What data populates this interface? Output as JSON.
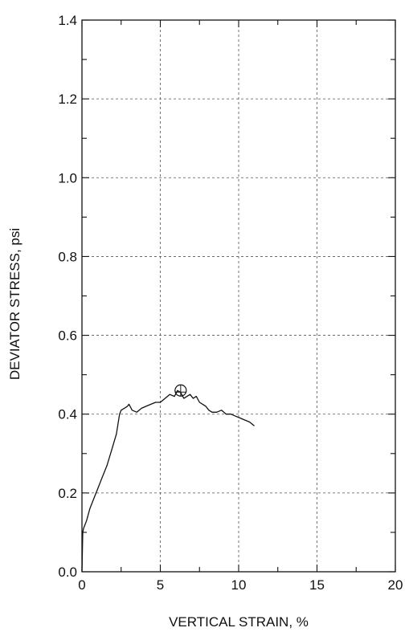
{
  "chart_data": {
    "type": "line",
    "title": "",
    "xlabel": "VERTICAL STRAIN, %",
    "ylabel": "DEVIATOR STRESS, psi",
    "xlim": [
      0,
      20
    ],
    "ylim": [
      0,
      1.4
    ],
    "x_ticks": [
      "0",
      "5",
      "10",
      "15",
      "20"
    ],
    "y_ticks": [
      "0.0",
      "0.2",
      "0.4",
      "0.6",
      "0.8",
      "1.0",
      "1.2",
      "1.4"
    ],
    "grid": true,
    "series": [
      {
        "x": [
          0,
          0.05,
          0.1,
          0.3,
          0.5,
          0.8,
          1.0,
          1.3,
          1.6,
          1.9,
          2.2,
          2.4,
          2.5,
          2.7,
          2.9,
          3.0,
          3.2,
          3.5,
          3.8,
          4.1,
          4.4,
          4.7,
          5.0,
          5.3,
          5.6,
          5.9,
          6.1,
          6.3,
          6.5,
          6.7,
          6.9,
          7.1,
          7.3,
          7.5,
          7.7,
          7.9,
          8.1,
          8.3,
          8.6,
          8.9,
          9.2,
          9.5,
          9.8,
          10.1,
          10.4,
          10.7,
          11.0
        ],
        "y": [
          0.0,
          0.1,
          0.11,
          0.13,
          0.16,
          0.19,
          0.21,
          0.24,
          0.27,
          0.31,
          0.35,
          0.4,
          0.41,
          0.415,
          0.42,
          0.425,
          0.41,
          0.405,
          0.415,
          0.42,
          0.425,
          0.43,
          0.43,
          0.44,
          0.45,
          0.445,
          0.46,
          0.455,
          0.44,
          0.445,
          0.45,
          0.44,
          0.445,
          0.43,
          0.425,
          0.42,
          0.41,
          0.405,
          0.405,
          0.41,
          0.4,
          0.4,
          0.395,
          0.39,
          0.385,
          0.38,
          0.37
        ]
      }
    ],
    "marker": {
      "x": 6.3,
      "y": 0.46
    }
  }
}
